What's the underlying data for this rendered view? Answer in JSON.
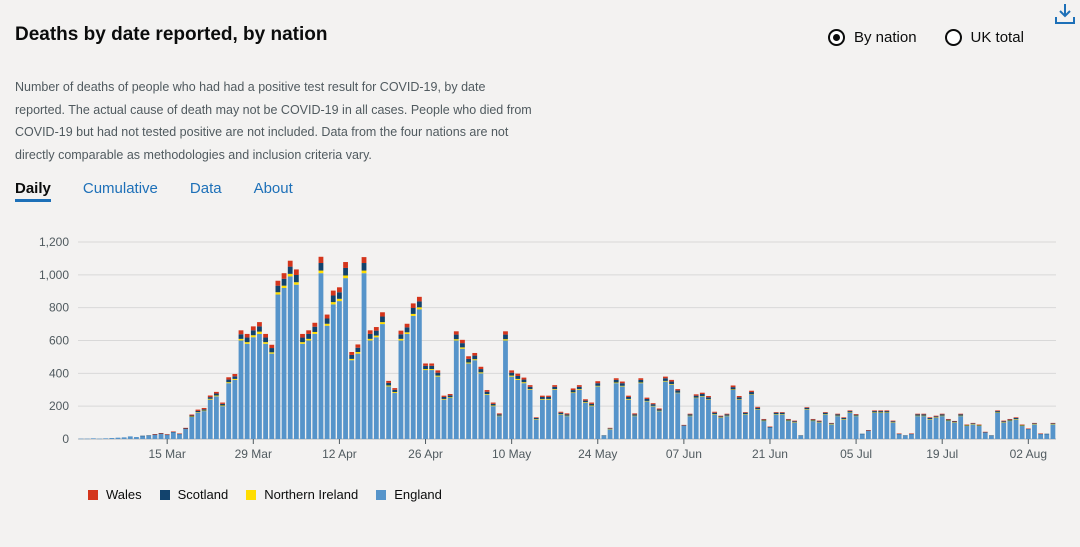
{
  "header": {
    "title": "Deaths by date reported, by nation"
  },
  "toggle": {
    "options": [
      "By nation",
      "UK total"
    ],
    "selected": 0
  },
  "description": "Number of deaths of people who had had a positive test result for COVID-19, by date reported. The actual cause of death may not be COVID-19 in all cases. People who died from COVID-19 but had not tested positive are not included. Data from the four nations are not directly comparable as methodologies and inclusion criteria vary.",
  "tabs": [
    "Daily",
    "Cumulative",
    "Data",
    "About"
  ],
  "colors": {
    "Wales": "#d4351c",
    "Scotland": "#12436d",
    "Northern Ireland": "#ffdd00",
    "England": "#5694ca",
    "grid": "#d8d8d8",
    "axis": "#505a5f"
  },
  "chart_data": {
    "type": "bar",
    "stacked": true,
    "title": "Deaths by date reported, by nation",
    "x_start_day": 1,
    "x_first_date": "2 Mar",
    "x_ticks": [
      {
        "day": 15,
        "label": "15 Mar"
      },
      {
        "day": 29,
        "label": "29 Mar"
      },
      {
        "day": 43,
        "label": "12 Apr"
      },
      {
        "day": 57,
        "label": "26 Apr"
      },
      {
        "day": 71,
        "label": "10 May"
      },
      {
        "day": 85,
        "label": "24 May"
      },
      {
        "day": 99,
        "label": "07 Jun"
      },
      {
        "day": 113,
        "label": "21 Jun"
      },
      {
        "day": 127,
        "label": "05 Jul"
      },
      {
        "day": 141,
        "label": "19 Jul"
      },
      {
        "day": 155,
        "label": "02 Aug"
      }
    ],
    "ylim": [
      0,
      1200
    ],
    "y_ticks": [
      {
        "value": 0,
        "label": "0"
      },
      {
        "value": 200,
        "label": "200"
      },
      {
        "value": 400,
        "label": "400"
      },
      {
        "value": 600,
        "label": "600"
      },
      {
        "value": 800,
        "label": "800"
      },
      {
        "value": 1000,
        "label": "1,000"
      },
      {
        "value": 1200,
        "label": "1,200"
      }
    ],
    "series": [
      {
        "name": "England",
        "values": [
          2,
          2,
          4,
          2,
          4,
          6,
          8,
          10,
          16,
          12,
          18,
          20,
          26,
          30,
          25,
          40,
          30,
          60,
          135,
          160,
          170,
          240,
          260,
          200,
          340,
          360,
          600,
          580,
          620,
          640,
          580,
          520,
          880,
          920,
          990,
          940,
          580,
          600,
          640,
          1010,
          690,
          820,
          840,
          980,
          480,
          520,
          1010,
          600,
          620,
          700,
          320,
          280,
          600,
          640,
          750,
          790,
          420,
          420,
          380,
          240,
          250,
          600,
          550,
          460,
          480,
          400,
          270,
          200,
          140,
          600,
          380,
          360,
          340,
          300,
          120,
          240,
          240,
          300,
          150,
          140,
          280,
          300,
          220,
          200,
          320,
          20,
          60,
          340,
          320,
          240,
          140,
          340,
          230,
          200,
          170,
          350,
          330,
          280,
          80,
          140,
          250,
          260,
          240,
          150,
          130,
          140,
          300,
          240,
          150,
          270,
          180,
          110,
          70,
          150,
          150,
          110,
          100,
          20,
          180,
          110,
          100,
          150,
          90,
          140,
          120,
          160,
          140,
          30,
          50,
          160,
          160,
          160,
          100,
          30,
          20,
          30,
          140,
          140,
          120,
          130,
          140,
          110,
          100,
          140,
          80,
          90,
          80,
          40,
          20,
          160,
          100,
          110,
          120,
          80,
          60,
          90,
          30,
          30,
          90
        ],
        "note": "approx"
      },
      {
        "name": "Northern Ireland",
        "values": [
          0,
          0,
          0,
          0,
          0,
          0,
          0,
          0,
          0,
          0,
          0,
          0,
          0,
          0,
          0,
          0,
          0,
          0,
          2,
          3,
          3,
          5,
          5,
          4,
          6,
          6,
          10,
          10,
          12,
          14,
          10,
          8,
          14,
          14,
          16,
          15,
          10,
          10,
          12,
          16,
          12,
          14,
          14,
          16,
          8,
          10,
          16,
          10,
          10,
          12,
          6,
          6,
          10,
          10,
          12,
          12,
          6,
          6,
          6,
          4,
          4,
          8,
          8,
          6,
          6,
          6,
          4,
          4,
          2,
          8,
          6,
          6,
          6,
          4,
          2,
          4,
          4,
          4,
          2,
          2,
          4,
          4,
          4,
          4,
          4,
          0,
          2,
          4,
          4,
          4,
          2,
          4,
          2,
          2,
          2,
          4,
          4,
          2,
          0,
          2,
          2,
          2,
          2,
          2,
          2,
          2,
          2,
          2,
          2,
          2,
          2,
          2,
          0,
          2,
          2,
          2,
          2,
          0,
          2,
          2,
          2,
          2,
          2,
          2,
          2,
          2,
          2,
          0,
          0,
          2,
          2,
          2,
          2,
          0,
          0,
          0,
          2,
          2,
          2,
          2,
          2,
          2,
          2,
          2,
          2,
          2,
          2,
          0,
          0,
          2,
          2,
          2,
          2,
          2,
          0,
          2,
          0,
          0,
          2
        ]
      },
      {
        "name": "Scotland",
        "values": [
          0,
          0,
          0,
          0,
          0,
          0,
          0,
          0,
          0,
          0,
          2,
          2,
          2,
          4,
          2,
          4,
          2,
          4,
          6,
          8,
          8,
          10,
          12,
          10,
          16,
          16,
          28,
          28,
          30,
          32,
          28,
          26,
          40,
          42,
          44,
          44,
          28,
          30,
          32,
          46,
          32,
          40,
          40,
          46,
          24,
          26,
          46,
          30,
          30,
          34,
          16,
          14,
          28,
          30,
          36,
          36,
          20,
          20,
          18,
          12,
          12,
          28,
          26,
          22,
          22,
          20,
          14,
          10,
          8,
          28,
          18,
          18,
          16,
          14,
          6,
          12,
          12,
          14,
          8,
          8,
          14,
          14,
          10,
          10,
          16,
          2,
          4,
          16,
          16,
          12,
          8,
          16,
          12,
          10,
          8,
          16,
          16,
          14,
          4,
          8,
          12,
          12,
          12,
          8,
          6,
          8,
          14,
          12,
          8,
          14,
          8,
          6,
          4,
          8,
          8,
          6,
          6,
          2,
          8,
          6,
          6,
          8,
          4,
          8,
          6,
          8,
          6,
          2,
          2,
          8,
          8,
          8,
          6,
          2,
          2,
          2,
          8,
          8,
          6,
          6,
          8,
          6,
          6,
          8,
          4,
          4,
          4,
          2,
          2,
          8,
          6,
          6,
          6,
          4,
          2,
          4,
          2,
          2,
          4
        ]
      },
      {
        "name": "Wales",
        "values": [
          0,
          0,
          0,
          0,
          0,
          0,
          0,
          0,
          0,
          0,
          0,
          0,
          2,
          2,
          2,
          2,
          2,
          4,
          6,
          8,
          8,
          10,
          10,
          8,
          14,
          14,
          24,
          22,
          24,
          26,
          22,
          20,
          30,
          34,
          36,
          34,
          22,
          22,
          24,
          38,
          24,
          30,
          30,
          36,
          18,
          20,
          36,
          22,
          22,
          26,
          12,
          10,
          22,
          22,
          28,
          28,
          14,
          14,
          14,
          8,
          8,
          20,
          20,
          16,
          16,
          14,
          10,
          8,
          6,
          20,
          14,
          14,
          12,
          10,
          4,
          8,
          8,
          10,
          6,
          6,
          10,
          10,
          8,
          8,
          12,
          0,
          2,
          10,
          10,
          8,
          6,
          10,
          8,
          6,
          6,
          10,
          10,
          8,
          2,
          4,
          8,
          8,
          8,
          6,
          4,
          4,
          10,
          8,
          4,
          8,
          6,
          4,
          2,
          4,
          4,
          4,
          4,
          0,
          4,
          4,
          4,
          4,
          2,
          4,
          4,
          4,
          4,
          0,
          2,
          4,
          4,
          4,
          4,
          2,
          0,
          2,
          4,
          4,
          4,
          4,
          4,
          4,
          2,
          4,
          2,
          2,
          2,
          2,
          0,
          4,
          4,
          4,
          4,
          2,
          2,
          2,
          2,
          0,
          2
        ]
      }
    ],
    "legend": [
      "Wales",
      "Scotland",
      "Northern Ireland",
      "England"
    ]
  }
}
